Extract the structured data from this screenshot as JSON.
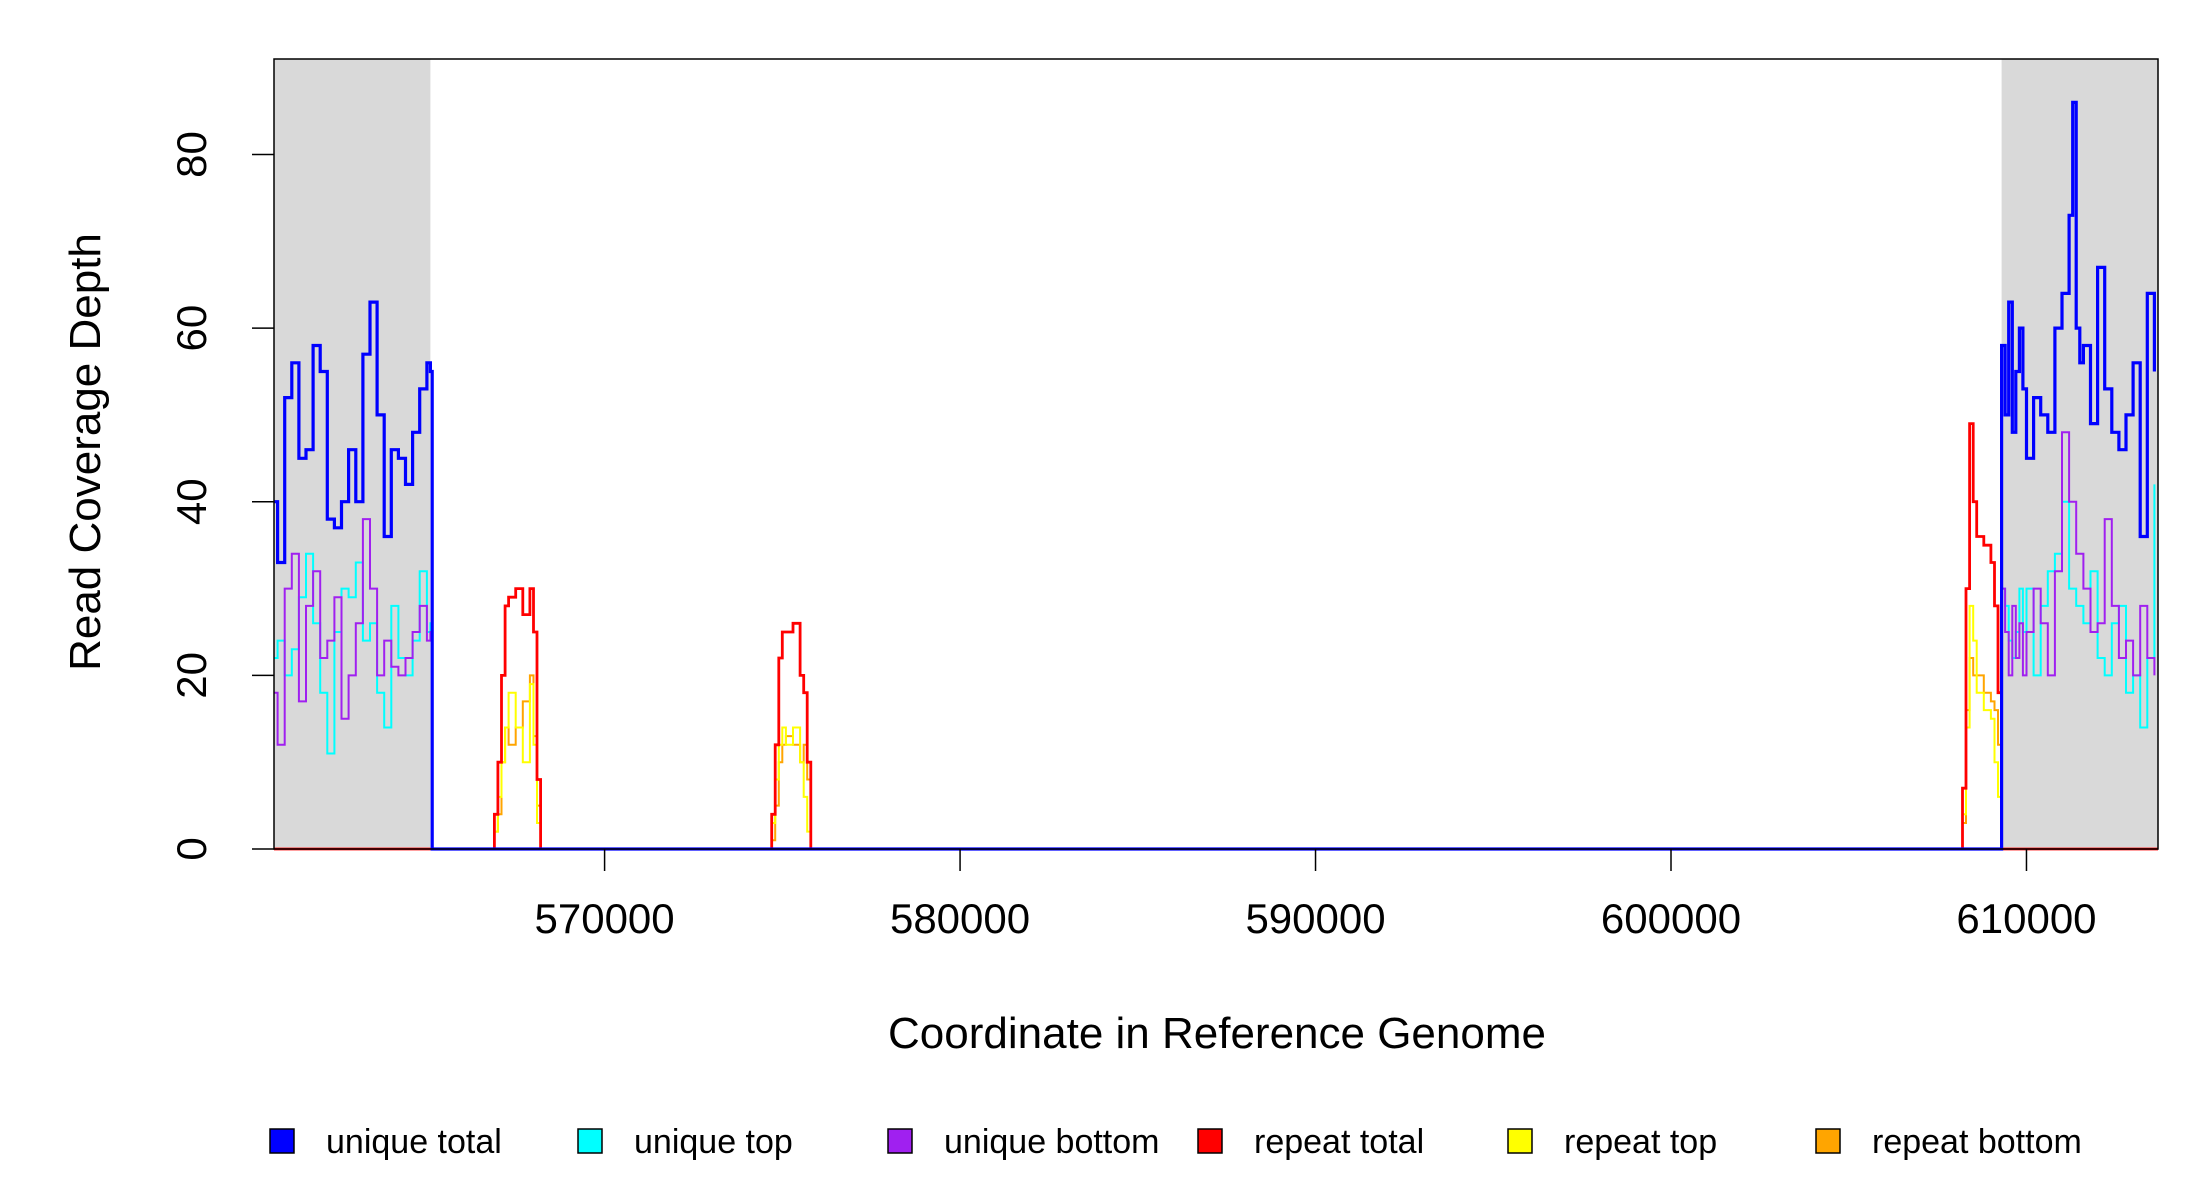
{
  "chart_data": {
    "type": "line",
    "xlabel": "Coordinate in Reference Genome",
    "ylabel": "Read Coverage Depth",
    "xlim": [
      560700,
      613700
    ],
    "ylim": [
      0,
      91
    ],
    "x_ticks": [
      570000,
      580000,
      590000,
      600000,
      610000
    ],
    "x_tick_labels": [
      "570000",
      "580000",
      "590000",
      "600000",
      "610000"
    ],
    "y_ticks": [
      0,
      20,
      40,
      60,
      80
    ],
    "y_tick_labels": [
      "0",
      "20",
      "40",
      "60",
      "80"
    ],
    "grid": false,
    "legend_position": "bottom",
    "shaded_regions": [
      {
        "x_start": 560700,
        "x_end": 565100,
        "color": "#d9d9d9"
      },
      {
        "x_start": 609300,
        "x_end": 613700,
        "color": "#d9d9d9"
      }
    ],
    "legend": [
      {
        "label": "unique total",
        "color": "#0000ff"
      },
      {
        "label": "unique top",
        "color": "#00ffff"
      },
      {
        "label": "unique bottom",
        "color": "#a020f0"
      },
      {
        "label": "repeat total",
        "color": "#ff0000"
      },
      {
        "label": "repeat top",
        "color": "#ffff00"
      },
      {
        "label": "repeat bottom",
        "color": "#ffa500"
      }
    ],
    "series": [
      {
        "name": "unique total",
        "color": "#0000ff",
        "width": 3.2,
        "x": [
          560700,
          560800,
          561000,
          561200,
          561400,
          561600,
          561800,
          562000,
          562200,
          562400,
          562600,
          562800,
          563000,
          563200,
          563400,
          563600,
          563800,
          564000,
          564200,
          564400,
          564600,
          564800,
          565000,
          565100,
          565150,
          609200,
          609300,
          609400,
          609500,
          609600,
          609700,
          609800,
          609900,
          610000,
          610200,
          610400,
          610600,
          610800,
          611000,
          611200,
          611300,
          611400,
          611500,
          611600,
          611800,
          612000,
          612200,
          612400,
          612600,
          612800,
          613000,
          613200,
          613400,
          613600
        ],
        "y": [
          40,
          33,
          52,
          56,
          45,
          46,
          58,
          55,
          38,
          37,
          40,
          46,
          40,
          57,
          63,
          50,
          36,
          46,
          45,
          42,
          48,
          53,
          56,
          55,
          0,
          0,
          58,
          50,
          63,
          48,
          55,
          60,
          53,
          45,
          52,
          50,
          48,
          60,
          64,
          73,
          86,
          60,
          56,
          58,
          49,
          67,
          53,
          48,
          46,
          50,
          56,
          36,
          64,
          55
        ]
      },
      {
        "name": "unique top",
        "color": "#00ffff",
        "width": 2,
        "x": [
          560700,
          560800,
          561000,
          561200,
          561400,
          561600,
          561800,
          562000,
          562200,
          562400,
          562600,
          562800,
          563000,
          563200,
          563400,
          563600,
          563800,
          564000,
          564200,
          564400,
          564600,
          564800,
          565000,
          565100,
          565150,
          609200,
          609300,
          609400,
          609500,
          609600,
          609700,
          609800,
          609900,
          610000,
          610200,
          610400,
          610600,
          610800,
          611000,
          611200,
          611400,
          611600,
          611800,
          612000,
          612200,
          612400,
          612600,
          612800,
          613000,
          613200,
          613400,
          613600
        ],
        "y": [
          22,
          24,
          20,
          23,
          29,
          34,
          26,
          18,
          11,
          25,
          30,
          29,
          33,
          24,
          26,
          18,
          14,
          28,
          22,
          20,
          24,
          32,
          25,
          26,
          0,
          0,
          30,
          28,
          24,
          22,
          25,
          30,
          25,
          30,
          20,
          28,
          32,
          34,
          40,
          30,
          28,
          26,
          32,
          22,
          20,
          26,
          28,
          18,
          20,
          14,
          22,
          42
        ]
      },
      {
        "name": "unique bottom",
        "color": "#a020f0",
        "width": 2,
        "x": [
          560700,
          560800,
          561000,
          561200,
          561400,
          561600,
          561800,
          562000,
          562200,
          562400,
          562600,
          562800,
          563000,
          563200,
          563400,
          563600,
          563800,
          564000,
          564200,
          564400,
          564600,
          564800,
          565000,
          565100,
          565150,
          609200,
          609300,
          609400,
          609500,
          609600,
          609700,
          609800,
          609900,
          610000,
          610200,
          610400,
          610600,
          610800,
          611000,
          611200,
          611400,
          611600,
          611800,
          612000,
          612200,
          612400,
          612600,
          612800,
          613000,
          613200,
          613400,
          613600
        ],
        "y": [
          18,
          12,
          30,
          34,
          17,
          28,
          32,
          22,
          24,
          29,
          15,
          20,
          26,
          38,
          30,
          20,
          24,
          21,
          20,
          22,
          25,
          28,
          24,
          25,
          0,
          0,
          30,
          25,
          20,
          28,
          22,
          26,
          20,
          25,
          30,
          26,
          20,
          32,
          48,
          40,
          34,
          30,
          25,
          26,
          38,
          28,
          22,
          24,
          20,
          28,
          22,
          20
        ]
      },
      {
        "name": "repeat total",
        "color": "#ff0000",
        "width": 2.8,
        "x": [
          560700,
          565100,
          566800,
          566900,
          567000,
          567100,
          567200,
          567300,
          567500,
          567700,
          567900,
          568000,
          568100,
          568200,
          574600,
          574700,
          574800,
          574900,
          575000,
          575100,
          575300,
          575500,
          575600,
          575700,
          575800,
          608100,
          608200,
          608300,
          608400,
          608500,
          608600,
          608800,
          609000,
          609100,
          609200,
          609300,
          613700
        ],
        "y": [
          0,
          0,
          0,
          4,
          10,
          20,
          28,
          29,
          30,
          27,
          30,
          25,
          8,
          0,
          0,
          4,
          12,
          22,
          25,
          25,
          26,
          20,
          18,
          10,
          0,
          0,
          7,
          30,
          49,
          40,
          36,
          35,
          33,
          28,
          18,
          0,
          0
        ]
      },
      {
        "name": "repeat top",
        "color": "#ffff00",
        "width": 2,
        "x": [
          560700,
          565100,
          566800,
          566900,
          567000,
          567100,
          567200,
          567300,
          567500,
          567700,
          567900,
          568000,
          568100,
          568200,
          574600,
          574700,
          574800,
          574900,
          575000,
          575100,
          575300,
          575500,
          575600,
          575700,
          575800,
          608100,
          608200,
          608300,
          608400,
          608500,
          608600,
          608800,
          609000,
          609100,
          609200,
          609300,
          613700
        ],
        "y": [
          0,
          0,
          0,
          2,
          6,
          10,
          14,
          18,
          14,
          10,
          19,
          12,
          3,
          0,
          0,
          3,
          8,
          12,
          14,
          12,
          14,
          10,
          6,
          2,
          0,
          0,
          4,
          14,
          28,
          24,
          18,
          16,
          15,
          10,
          6,
          0,
          0
        ]
      },
      {
        "name": "repeat bottom",
        "color": "#ffa500",
        "width": 2,
        "x": [
          560700,
          565100,
          566800,
          566900,
          567000,
          567100,
          567200,
          567300,
          567500,
          567700,
          567900,
          568000,
          568100,
          568200,
          574600,
          574700,
          574800,
          574900,
          575000,
          575100,
          575300,
          575500,
          575600,
          575700,
          575800,
          608100,
          608200,
          608300,
          608400,
          608500,
          608600,
          608800,
          609000,
          609100,
          609200,
          609300,
          613700
        ],
        "y": [
          0,
          0,
          0,
          2,
          4,
          10,
          14,
          12,
          14,
          17,
          20,
          13,
          5,
          0,
          0,
          1,
          5,
          10,
          12,
          13,
          12,
          10,
          12,
          8,
          0,
          0,
          3,
          16,
          22,
          20,
          20,
          18,
          17,
          16,
          12,
          0,
          0
        ]
      }
    ]
  }
}
